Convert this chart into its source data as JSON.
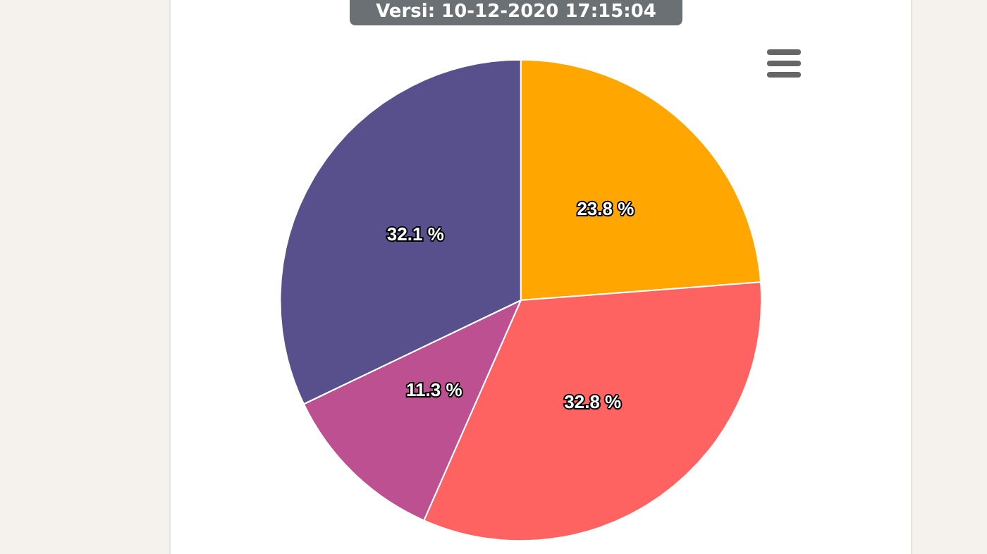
{
  "chart_data": {
    "type": "pie",
    "title": "Versi: 10-12-2020 17:15:04",
    "categories": [
      null,
      null,
      null,
      null
    ],
    "values": [
      23.8,
      32.8,
      11.3,
      32.1
    ],
    "colors": [
      "#ffa600",
      "#ff6361",
      "#bc5090",
      "#58508d"
    ],
    "value_labels": [
      "23.8 %",
      "32.8 %",
      "11.3 %",
      "32.1 %"
    ]
  }
}
